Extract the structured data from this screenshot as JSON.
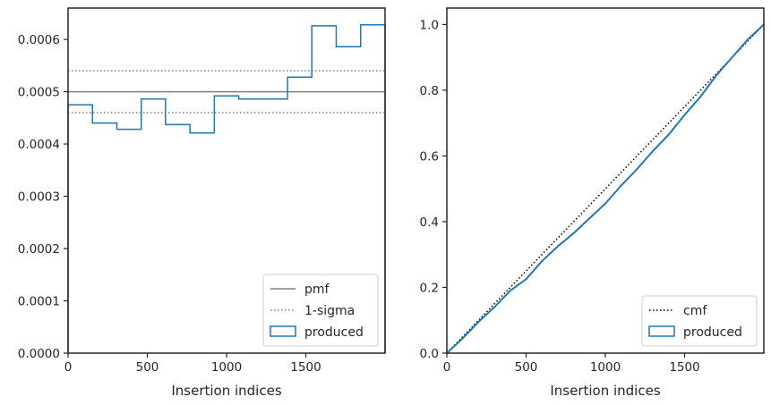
{
  "chart_data": [
    {
      "type": "line",
      "xlabel": "Insertion indices",
      "ylabel": "",
      "xlim": [
        0,
        2000
      ],
      "ylim": [
        0,
        0.00066
      ],
      "x_ticks": [
        0,
        500,
        1000,
        1500
      ],
      "x_tick_labels": [
        "0",
        "500",
        "1000",
        "1500"
      ],
      "y_ticks": [
        0,
        0.0001,
        0.0002,
        0.0003,
        0.0004,
        0.0005,
        0.0006
      ],
      "y_tick_labels": [
        "0.0000",
        "0.0001",
        "0.0002",
        "0.0003",
        "0.0004",
        "0.0005",
        "0.0006"
      ],
      "grid": false,
      "legend_position": "lower-right",
      "pmf": {
        "name": "pmf",
        "value": 0.0005,
        "color": "#808080",
        "style": "solid"
      },
      "sigma": {
        "name": "1-sigma",
        "values": [
          0.00046,
          0.00054
        ],
        "color": "#808080",
        "style": "dotted"
      },
      "produced": {
        "name": "produced",
        "color": "#1f77b4",
        "bin_edges": [
          0,
          154,
          308,
          462,
          615,
          769,
          923,
          1077,
          1231,
          1385,
          1538,
          1692,
          1846,
          2000
        ],
        "values": [
          0.000475,
          0.00044,
          0.000428,
          0.000486,
          0.000437,
          0.000421,
          0.000492,
          0.000486,
          0.000486,
          0.000528,
          0.000626,
          0.000586,
          0.000628
        ]
      }
    },
    {
      "type": "line",
      "xlabel": "Insertion indices",
      "ylabel": "",
      "xlim": [
        0,
        2000
      ],
      "ylim": [
        0,
        1.05
      ],
      "x_ticks": [
        0,
        500,
        1000,
        1500
      ],
      "x_tick_labels": [
        "0",
        "500",
        "1000",
        "1500"
      ],
      "y_ticks": [
        0,
        0.2,
        0.4,
        0.6,
        0.8,
        1.0
      ],
      "y_tick_labels": [
        "0.0",
        "0.2",
        "0.4",
        "0.6",
        "0.8",
        "1.0"
      ],
      "grid": false,
      "legend_position": "lower-right",
      "cmf": {
        "name": "cmf",
        "x": [
          0,
          2000
        ],
        "y": [
          0,
          1.0
        ],
        "color": "#000000",
        "style": "dotted"
      },
      "produced": {
        "name": "produced",
        "color": "#1f77b4",
        "x": [
          0,
          100,
          200,
          300,
          400,
          500,
          600,
          700,
          800,
          900,
          1000,
          1100,
          1200,
          1300,
          1400,
          1500,
          1600,
          1700,
          1800,
          1900,
          2000
        ],
        "y": [
          0,
          0.045,
          0.095,
          0.14,
          0.19,
          0.225,
          0.28,
          0.325,
          0.365,
          0.41,
          0.455,
          0.51,
          0.56,
          0.615,
          0.665,
          0.725,
          0.78,
          0.845,
          0.9,
          0.955,
          1.0
        ]
      }
    }
  ]
}
